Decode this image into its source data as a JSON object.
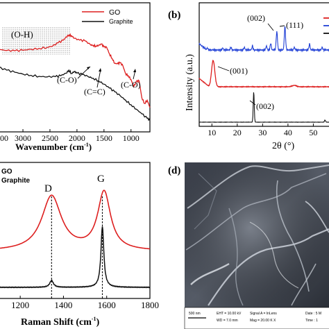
{
  "panels": {
    "a": {
      "chart_data": {
        "type": "line",
        "xlabel": "Wavenumber (cm",
        "xlabel_sup": "-1",
        "xlabel_tail": ")",
        "x_ticks": [
          3000,
          2500,
          2000,
          1500,
          1000
        ],
        "x_first_tick_fragment": "00",
        "xlim": [
          3450,
          650
        ],
        "legend": [
          "GO",
          "Graphite"
        ],
        "annotations": [
          "(O-H)",
          "(C-O)",
          "(C=C)",
          "(C-O)"
        ],
        "series": [
          {
            "name": "GO",
            "color": "#dd1f1f",
            "x": [
              3450,
              3300,
              3150,
              3000,
              2850,
              2700,
              2550,
              2450,
              2350,
              2250,
              2200,
              2150,
              2100,
              2050,
              1950,
              1850,
              1750,
              1700,
              1650,
              1600,
              1550,
              1500,
              1450,
              1400,
              1350,
              1300,
              1250,
              1200,
              1150,
              1100,
              1050,
              1000,
              950,
              900,
              850,
              800,
              750,
              700,
              650
            ],
            "y": [
              0.64,
              0.63,
              0.628,
              0.632,
              0.64,
              0.646,
              0.655,
              0.665,
              0.69,
              0.71,
              0.735,
              0.75,
              0.745,
              0.725,
              0.71,
              0.705,
              0.675,
              0.67,
              0.665,
              0.67,
              0.68,
              0.658,
              0.655,
              0.605,
              0.57,
              0.53,
              0.528,
              0.535,
              0.512,
              0.45,
              0.435,
              0.405,
              0.35,
              0.39,
              0.395,
              0.265,
              0.22,
              0.245,
              0.19
            ]
          },
          {
            "name": "Graphite",
            "color": "#111111",
            "x": [
              3450,
              3300,
              3150,
              3000,
              2850,
              2700,
              2550,
              2400,
              2300,
              2200,
              2150,
              2100,
              2050,
              2000,
              1900,
              1800,
              1700,
              1600,
              1500,
              1400,
              1300,
              1200,
              1100,
              1000,
              900,
              800,
              700,
              650
            ],
            "y": [
              0.5,
              0.478,
              0.462,
              0.448,
              0.438,
              0.43,
              0.426,
              0.428,
              0.435,
              0.455,
              0.478,
              0.452,
              0.468,
              0.455,
              0.445,
              0.43,
              0.415,
              0.395,
              0.37,
              0.34,
              0.31,
              0.28,
              0.245,
              0.21,
              0.175,
              0.14,
              0.105,
              0.09
            ]
          }
        ]
      }
    },
    "b": {
      "label": "(b)",
      "chart_data": {
        "type": "line",
        "ylabel": "Intensity (a.u.)",
        "xlabel": "2θ (°)",
        "x_ticks": [
          10,
          20,
          30,
          40,
          50
        ],
        "xlim": [
          5,
          57
        ],
        "annotations": [
          "(002)",
          "(111)",
          "(001)",
          "(002)"
        ],
        "series": [
          {
            "name": "",
            "color": "#1f3fd6"
          },
          {
            "name": "",
            "color": "#dd1f1f"
          },
          {
            "name": "",
            "color": "#111111"
          }
        ]
      }
    },
    "c": {
      "chart_data": {
        "type": "line",
        "xlabel": "Raman Shift (cm",
        "xlabel_sup": "-1",
        "xlabel_tail": ")",
        "x_ticks": [
          1200,
          1400,
          1600,
          1800
        ],
        "xlim": [
          1100,
          1800
        ],
        "legend": [
          "GO",
          "Graphite"
        ],
        "peak_labels": [
          "D",
          "G"
        ],
        "peak_positions": [
          1345,
          1580
        ],
        "series": [
          {
            "name": "GO",
            "color": "#dd1f1f"
          },
          {
            "name": "Graphite",
            "color": "#111111"
          }
        ]
      }
    },
    "d": {
      "label": "(d)",
      "scale_bar": "500 nm",
      "info": [
        "EHT = 10.00 kV",
        "WD = 7.0 mm",
        "Signal A = InLens",
        "Mag = 20.00 K X",
        "Date : 5 M",
        "Time : 1"
      ]
    }
  },
  "colors": {
    "go": "#dd1f1f",
    "graphite": "#111111",
    "blue": "#1f3fd6"
  }
}
